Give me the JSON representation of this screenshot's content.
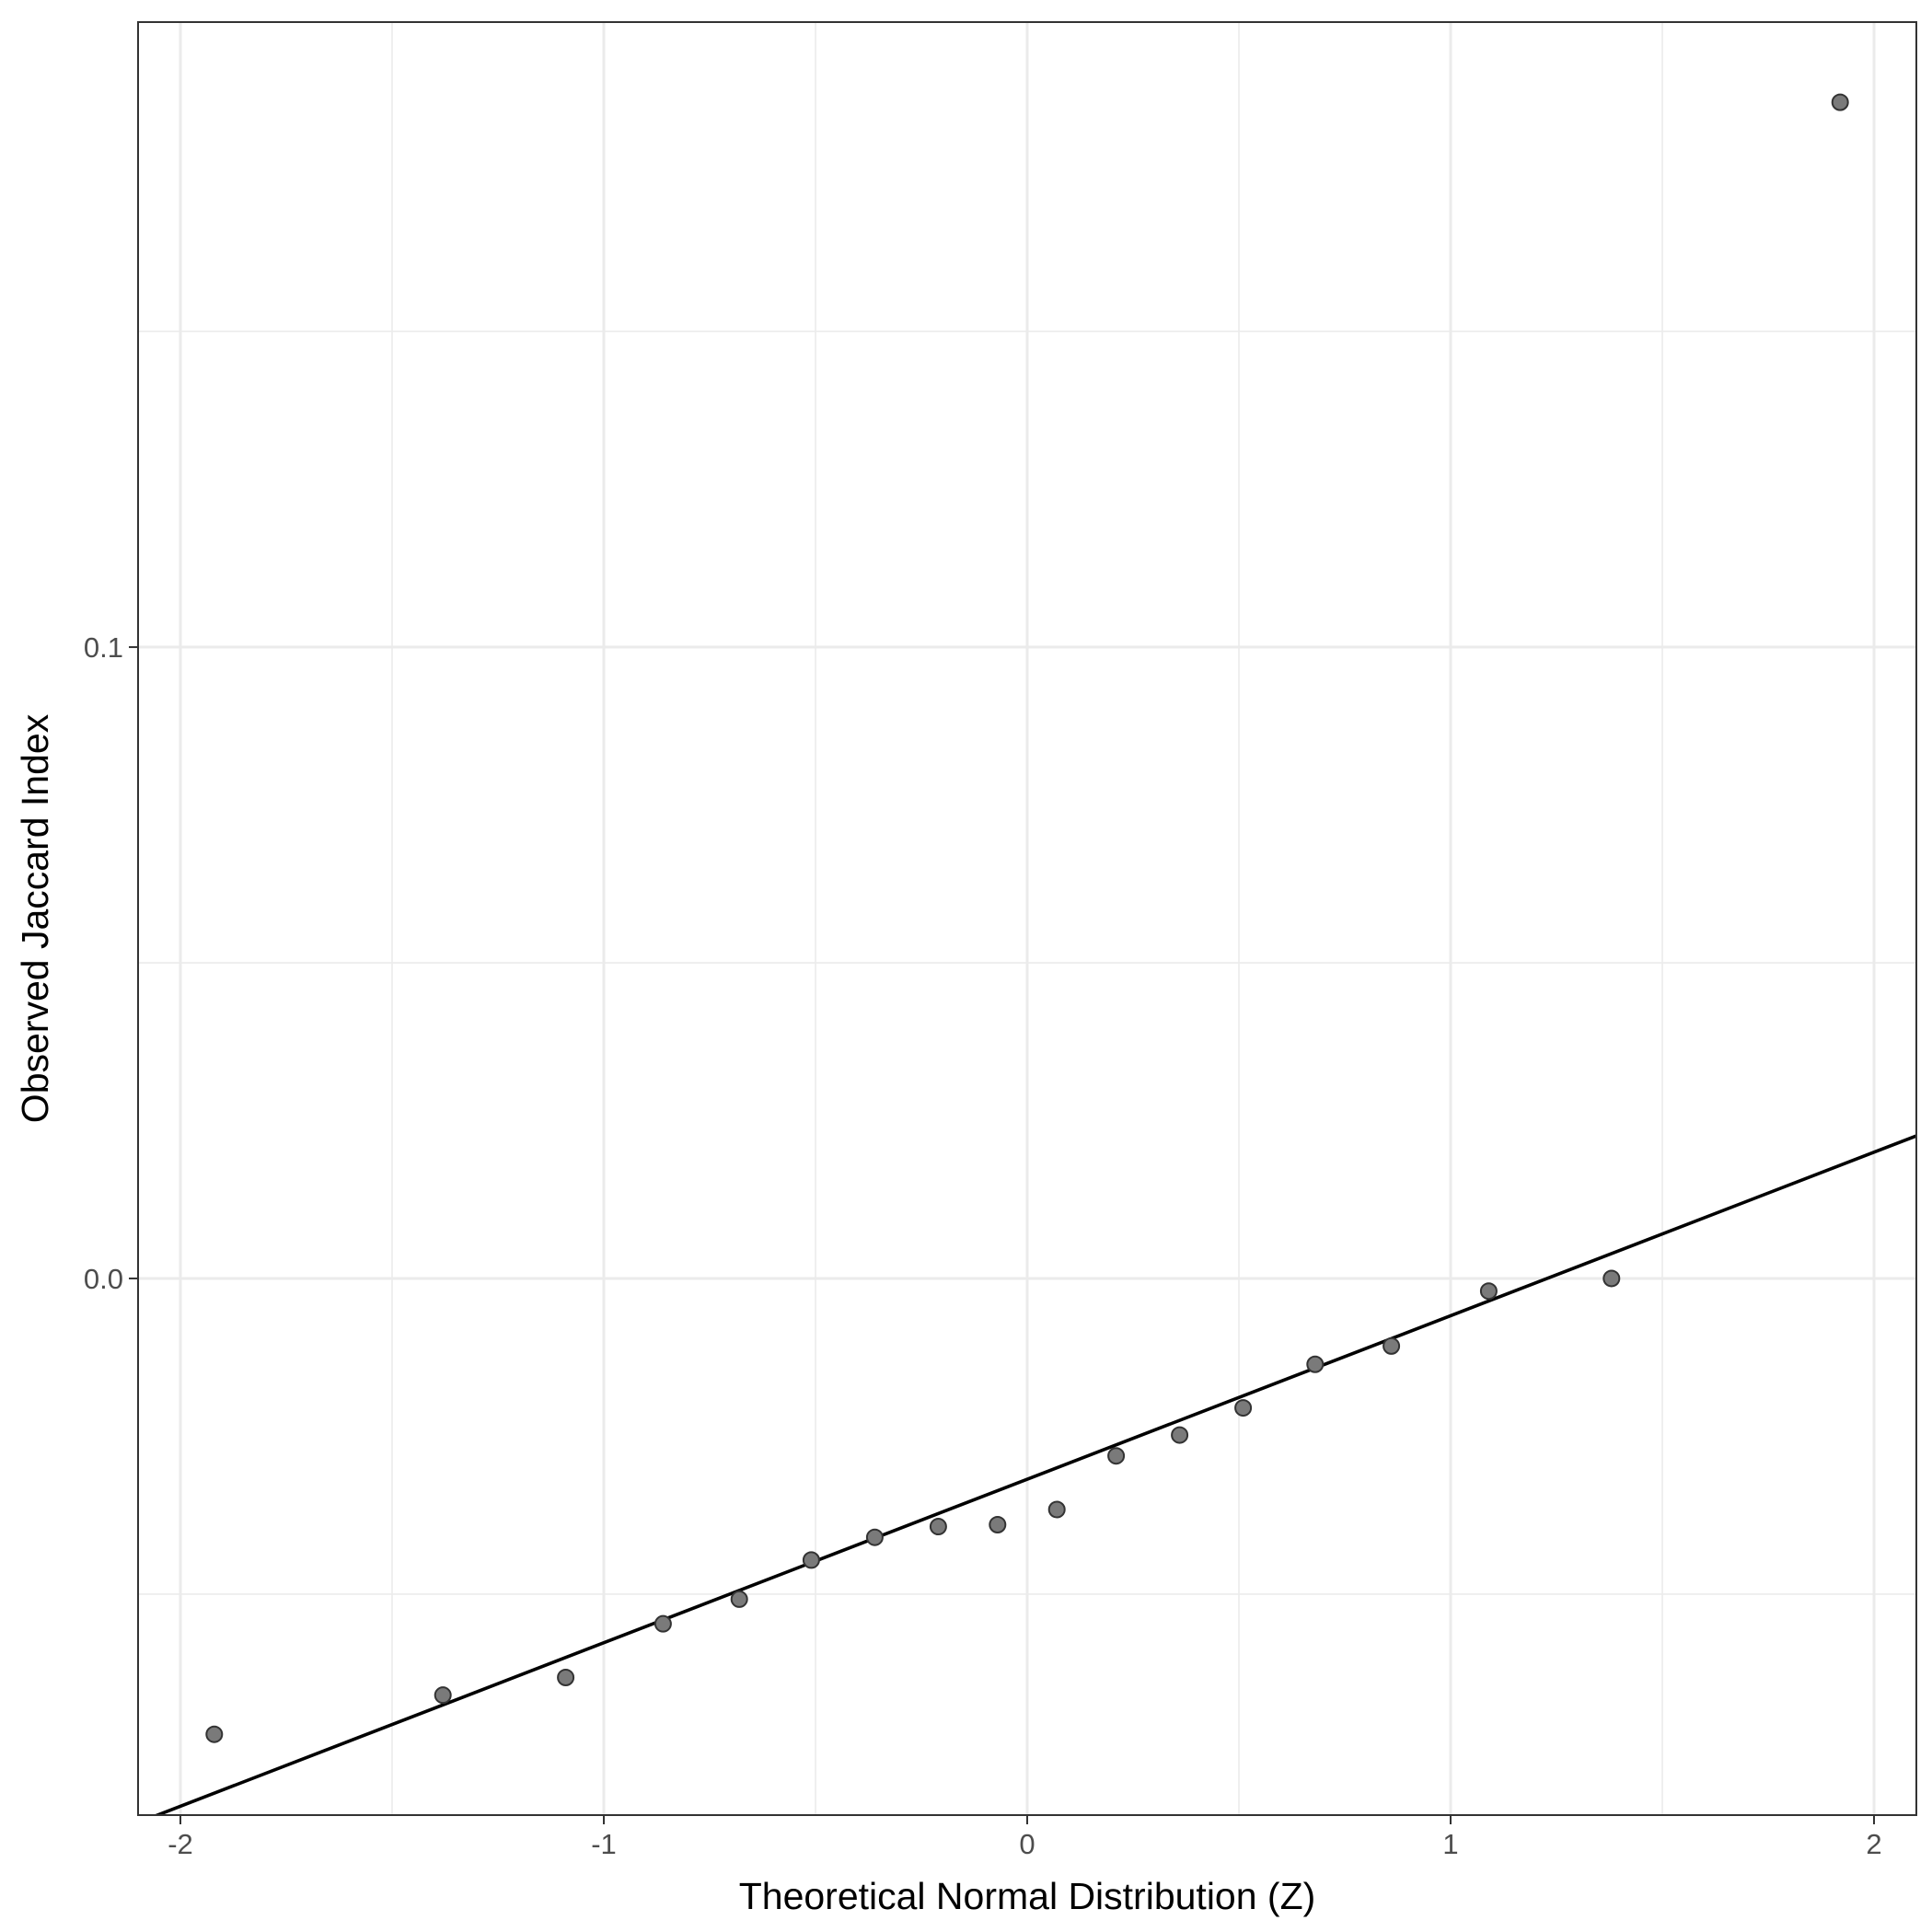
{
  "chart_data": {
    "type": "scatter",
    "title": "",
    "xlabel": "Theoretical Normal Distribution (Z)",
    "ylabel": "Observed Jaccard Index",
    "xlim": [
      -2.1,
      2.1
    ],
    "ylim": [
      -0.085,
      0.199
    ],
    "x_ticks": [
      -2,
      -1,
      0,
      1,
      2
    ],
    "x_tick_labels": [
      "-2",
      "-1",
      "0",
      "1",
      "2"
    ],
    "y_ticks": [
      0.0,
      0.1
    ],
    "y_tick_labels": [
      "0.0",
      "0.1"
    ],
    "x_minor_ticks": [
      -1.5,
      -0.5,
      0.5,
      1.5
    ],
    "y_minor_ticks": [
      -0.05,
      0.05,
      0.15
    ],
    "grid": true,
    "points": [
      {
        "x": -1.92,
        "y": -0.0722
      },
      {
        "x": -1.38,
        "y": -0.066
      },
      {
        "x": -1.09,
        "y": -0.0632
      },
      {
        "x": -0.86,
        "y": -0.0547
      },
      {
        "x": -0.68,
        "y": -0.0508
      },
      {
        "x": -0.51,
        "y": -0.0446
      },
      {
        "x": -0.36,
        "y": -0.041
      },
      {
        "x": -0.21,
        "y": -0.0393
      },
      {
        "x": -0.07,
        "y": -0.039
      },
      {
        "x": 0.07,
        "y": -0.0366
      },
      {
        "x": 0.21,
        "y": -0.0281
      },
      {
        "x": 0.36,
        "y": -0.0248
      },
      {
        "x": 0.51,
        "y": -0.0205
      },
      {
        "x": 0.68,
        "y": -0.0136
      },
      {
        "x": 0.86,
        "y": -0.0107
      },
      {
        "x": 1.09,
        "y": -0.002
      },
      {
        "x": 1.38,
        "y": 0.0
      },
      {
        "x": 1.92,
        "y": 0.1863
      }
    ],
    "reference_line": {
      "intercept": -0.0318,
      "slope": 0.0259
    },
    "colors": {
      "point_fill": "#7a7a7a",
      "point_stroke": "#333333",
      "line": "#000000",
      "grid": "#ebebeb",
      "border": "#333333"
    }
  }
}
